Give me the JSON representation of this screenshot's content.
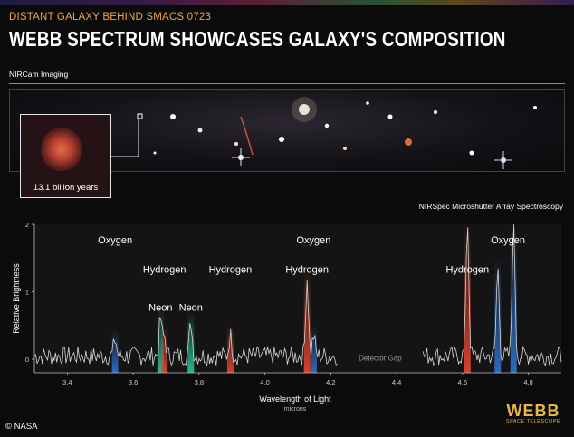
{
  "header": {
    "kicker": "DISTANT GALAXY BEHIND SMACS 0723",
    "title": "WEBB SPECTRUM SHOWCASES GALAXY'S COMPOSITION"
  },
  "imaging": {
    "label": "NIRCam Imaging",
    "inset_label": "13.1 billion years"
  },
  "spectroscopy": {
    "label": "NIRSpec Microshutter Array Spectroscopy"
  },
  "chart_data": {
    "type": "line",
    "xlabel": "Wavelength of Light",
    "xunit": "microns",
    "ylabel": "Relative Brightness",
    "xlim": [
      3.3,
      4.9
    ],
    "ylim": [
      -0.2,
      2
    ],
    "xticks": [
      3.4,
      3.6,
      3.8,
      4.0,
      4.2,
      4.4,
      4.6,
      4.8
    ],
    "xtick_labels": [
      "3.4",
      "3.6",
      "3.8",
      "4.0",
      "4.2",
      "4.4",
      "4.6",
      "4.8"
    ],
    "yticks": [
      0,
      1,
      2
    ],
    "ytick_labels": [
      "0",
      "1",
      "2"
    ],
    "gap": {
      "from": 4.22,
      "to": 4.48,
      "label": "Detector Gap"
    },
    "emission_lines": [
      {
        "x": 3.545,
        "peak": 0.25,
        "label": "Oxygen",
        "color": "#2f6fc4"
      },
      {
        "x": 3.683,
        "peak": 0.55,
        "label": "Neon",
        "color": "#27c29a"
      },
      {
        "x": 3.695,
        "peak": 0.3,
        "label": "Hydrogen",
        "color": "#e0452f"
      },
      {
        "x": 3.775,
        "peak": 0.5,
        "label": "Neon",
        "color": "#27c29a"
      },
      {
        "x": 3.895,
        "peak": 0.3,
        "label": "Hydrogen",
        "color": "#e0452f"
      },
      {
        "x": 4.128,
        "peak": 1.15,
        "label": "Hydrogen",
        "color": "#e0452f"
      },
      {
        "x": 4.148,
        "peak": 0.3,
        "label": "Oxygen",
        "color": "#2f6fc4"
      },
      {
        "x": 4.615,
        "peak": 2.0,
        "label": "Hydrogen",
        "color": "#e0452f"
      },
      {
        "x": 4.707,
        "peak": 1.3,
        "label": "Oxygen",
        "color": "#2f6fc4"
      },
      {
        "x": 4.755,
        "peak": 2.0,
        "label": "Oxygen",
        "color": "#2f6fc4"
      }
    ],
    "line_labels": [
      {
        "text": "Oxygen",
        "x": 3.545,
        "y": 1.72
      },
      {
        "text": "Hydrogen",
        "x": 3.695,
        "y": 1.28
      },
      {
        "text": "Neon",
        "x": 3.683,
        "y": 0.72
      },
      {
        "text": "Neon",
        "x": 3.775,
        "y": 0.72
      },
      {
        "text": "Hydrogen",
        "x": 3.895,
        "y": 1.28
      },
      {
        "text": "Oxygen",
        "x": 4.148,
        "y": 1.72
      },
      {
        "text": "Hydrogen",
        "x": 4.128,
        "y": 1.28
      },
      {
        "text": "Hydrogen",
        "x": 4.615,
        "y": 1.28
      },
      {
        "text": "Oxygen",
        "x": 4.738,
        "y": 1.72
      }
    ]
  },
  "footer": {
    "credit": "© NASA",
    "logo_word": "WEBB",
    "logo_sub": "SPACE TELESCOPE"
  }
}
